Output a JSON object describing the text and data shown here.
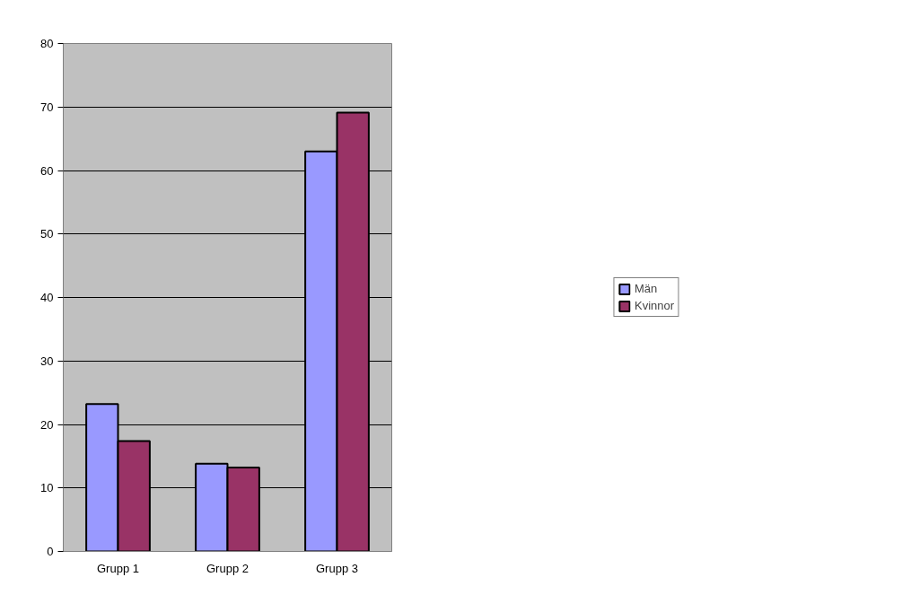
{
  "chart_data": {
    "type": "bar",
    "categories": [
      "Grupp 1",
      "Grupp 2",
      "Grupp 3"
    ],
    "series": [
      {
        "name": "Män",
        "color": "#9999ff",
        "values": [
          23.2,
          13.8,
          63.0
        ]
      },
      {
        "name": "Kvinnor",
        "color": "#993366",
        "values": [
          17.4,
          13.2,
          69.1
        ]
      }
    ],
    "ylim": [
      0,
      80
    ],
    "yticks": [
      0,
      10,
      20,
      30,
      40,
      50,
      60,
      70,
      80
    ],
    "grid": "y",
    "legend": "right"
  }
}
